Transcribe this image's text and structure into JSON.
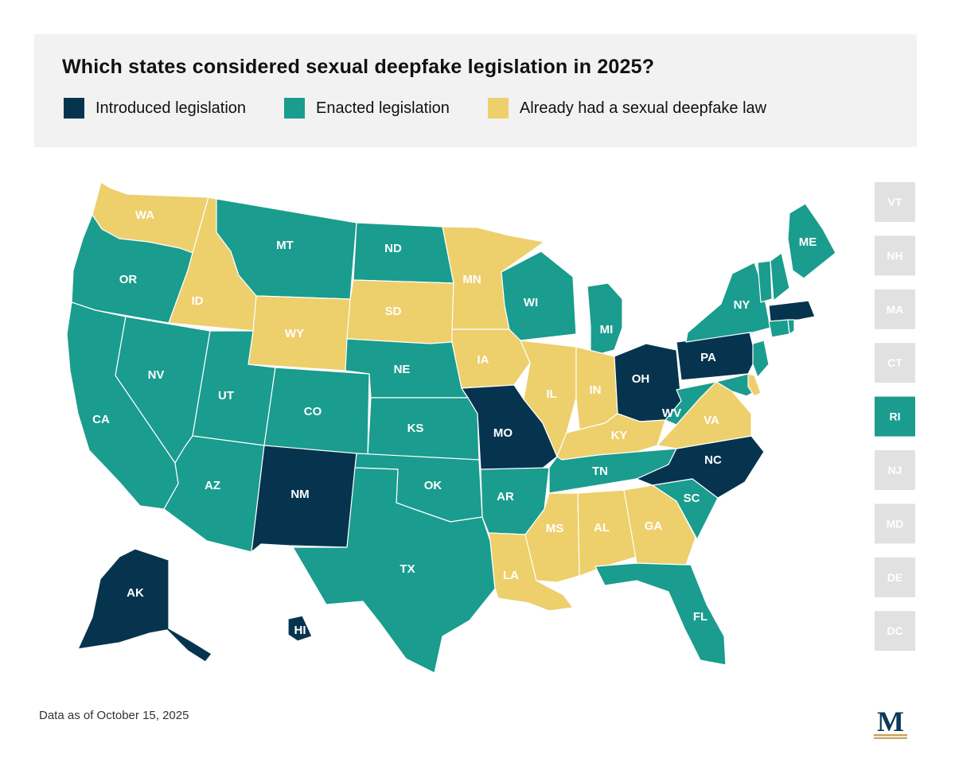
{
  "title": "Which states considered sexual deepfake legislation in 2025?",
  "colors": {
    "introduced": "#06344f",
    "enacted": "#1a9c8e",
    "already": "#edcf6c",
    "small_inactive": "#e1e1e1",
    "logo": "#0b3a5a",
    "logo_accent": "#c9a55a"
  },
  "legend": [
    {
      "key": "introduced",
      "label": "Introduced legislation"
    },
    {
      "key": "enacted",
      "label": "Enacted legislation"
    },
    {
      "key": "already",
      "label": "Already had a sexual deepfake law"
    }
  ],
  "states": [
    {
      "abbr": "WA",
      "status": "already"
    },
    {
      "abbr": "OR",
      "status": "enacted"
    },
    {
      "abbr": "CA",
      "status": "enacted"
    },
    {
      "abbr": "ID",
      "status": "already"
    },
    {
      "abbr": "NV",
      "status": "enacted"
    },
    {
      "abbr": "MT",
      "status": "enacted"
    },
    {
      "abbr": "WY",
      "status": "already"
    },
    {
      "abbr": "UT",
      "status": "enacted"
    },
    {
      "abbr": "AZ",
      "status": "enacted"
    },
    {
      "abbr": "CO",
      "status": "enacted"
    },
    {
      "abbr": "NM",
      "status": "introduced"
    },
    {
      "abbr": "ND",
      "status": "enacted"
    },
    {
      "abbr": "SD",
      "status": "already"
    },
    {
      "abbr": "NE",
      "status": "enacted"
    },
    {
      "abbr": "KS",
      "status": "enacted"
    },
    {
      "abbr": "OK",
      "status": "enacted"
    },
    {
      "abbr": "TX",
      "status": "enacted"
    },
    {
      "abbr": "MN",
      "status": "already"
    },
    {
      "abbr": "IA",
      "status": "already"
    },
    {
      "abbr": "MO",
      "status": "introduced"
    },
    {
      "abbr": "AR",
      "status": "enacted"
    },
    {
      "abbr": "LA",
      "status": "already"
    },
    {
      "abbr": "WI",
      "status": "enacted"
    },
    {
      "abbr": "IL",
      "status": "already"
    },
    {
      "abbr": "MI",
      "status": "enacted"
    },
    {
      "abbr": "IN",
      "status": "already"
    },
    {
      "abbr": "OH",
      "status": "introduced"
    },
    {
      "abbr": "KY",
      "status": "already"
    },
    {
      "abbr": "TN",
      "status": "enacted"
    },
    {
      "abbr": "MS",
      "status": "already"
    },
    {
      "abbr": "AL",
      "status": "already"
    },
    {
      "abbr": "GA",
      "status": "already"
    },
    {
      "abbr": "FL",
      "status": "enacted"
    },
    {
      "abbr": "SC",
      "status": "enacted"
    },
    {
      "abbr": "NC",
      "status": "introduced"
    },
    {
      "abbr": "VA",
      "status": "already"
    },
    {
      "abbr": "WV",
      "status": "enacted"
    },
    {
      "abbr": "PA",
      "status": "introduced"
    },
    {
      "abbr": "NY",
      "status": "enacted"
    },
    {
      "abbr": "ME",
      "status": "enacted"
    },
    {
      "abbr": "AK",
      "status": "introduced"
    },
    {
      "abbr": "HI",
      "status": "introduced"
    }
  ],
  "small_states": [
    {
      "abbr": "VT",
      "status": "enacted"
    },
    {
      "abbr": "NH",
      "status": "enacted"
    },
    {
      "abbr": "MA",
      "status": "introduced"
    },
    {
      "abbr": "CT",
      "status": "enacted"
    },
    {
      "abbr": "RI",
      "status": "enacted"
    },
    {
      "abbr": "NJ",
      "status": "enacted"
    },
    {
      "abbr": "MD",
      "status": "enacted"
    },
    {
      "abbr": "DE",
      "status": "already"
    },
    {
      "abbr": "DC",
      "status": "none"
    }
  ],
  "footnote": "Data as of October 15, 2025",
  "logo_letter": "M"
}
